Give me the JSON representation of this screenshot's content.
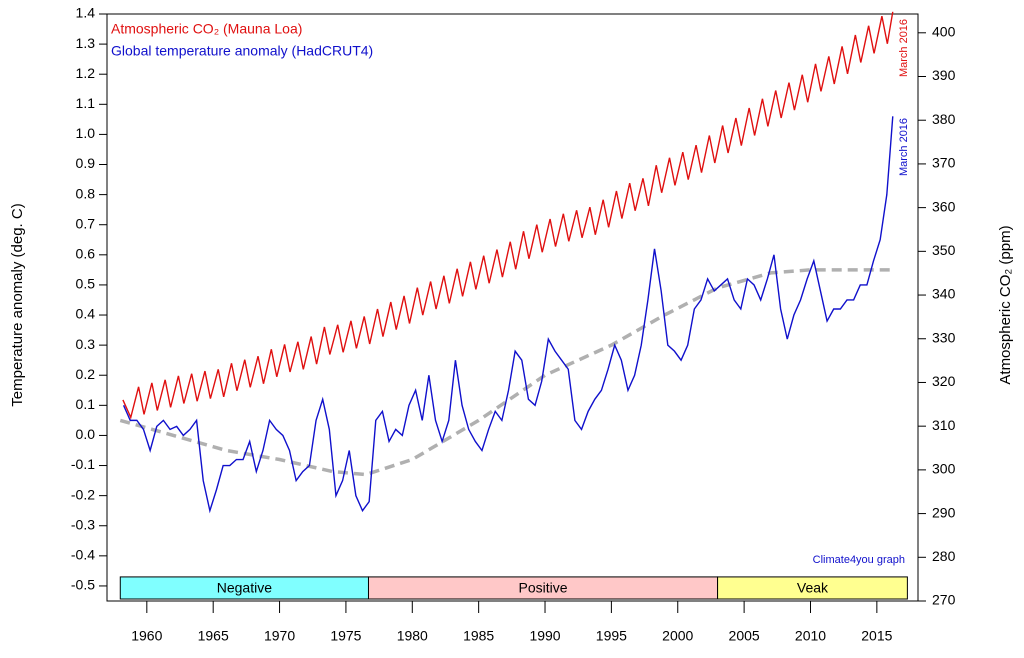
{
  "chart_data": {
    "type": "line",
    "xlim": [
      1957,
      2018.1
    ],
    "xticks": [
      1960,
      1965,
      1970,
      1975,
      1980,
      1985,
      1990,
      1995,
      2000,
      2005,
      2010,
      2015
    ],
    "ylim": [
      -0.55,
      1.4
    ],
    "yticks": [
      -0.5,
      -0.4,
      -0.3,
      -0.2,
      -0.1,
      {
        "value": 0,
        "label": "0.0"
      },
      0.1,
      0.2,
      0.3,
      0.4,
      0.5,
      0.6,
      0.7,
      0.8,
      0.9,
      {
        "value": 1,
        "label": "1.0"
      },
      1.1,
      1.2,
      1.3,
      1.4
    ],
    "ylabel": "Temperature anomaly (deg. C)",
    "y2lim": [
      270,
      404.3
    ],
    "y2ticks": [
      270,
      280,
      290,
      300,
      310,
      320,
      330,
      340,
      350,
      360,
      370,
      380,
      390,
      400
    ],
    "y2label": "Atmospheric CO₂ (ppm)",
    "series": [
      {
        "name": "Atmospheric CO₂ (Mauna Loa)",
        "color": "#e01010",
        "axis": "y2",
        "x": [
          1958.2,
          1958.79,
          1959.38,
          1959.79,
          1960.38,
          1960.79,
          1961.38,
          1961.79,
          1962.38,
          1962.79,
          1963.38,
          1963.79,
          1964.38,
          1964.79,
          1965.38,
          1965.79,
          1966.38,
          1966.79,
          1967.38,
          1967.79,
          1968.38,
          1968.79,
          1969.38,
          1969.79,
          1970.38,
          1970.79,
          1971.38,
          1971.79,
          1972.38,
          1972.79,
          1973.38,
          1973.79,
          1974.38,
          1974.79,
          1975.38,
          1975.79,
          1976.38,
          1976.79,
          1977.38,
          1977.79,
          1978.38,
          1978.79,
          1979.38,
          1979.79,
          1980.38,
          1980.79,
          1981.38,
          1981.79,
          1982.38,
          1982.79,
          1983.38,
          1983.79,
          1984.38,
          1984.79,
          1985.38,
          1985.79,
          1986.38,
          1986.79,
          1987.38,
          1987.79,
          1988.38,
          1988.79,
          1989.38,
          1989.79,
          1990.38,
          1990.79,
          1991.38,
          1991.79,
          1992.38,
          1992.79,
          1993.38,
          1993.79,
          1994.38,
          1994.79,
          1995.38,
          1995.79,
          1996.38,
          1996.79,
          1997.38,
          1997.79,
          1998.38,
          1998.79,
          1999.38,
          1999.79,
          2000.38,
          2000.79,
          2001.38,
          2001.79,
          2002.38,
          2002.79,
          2003.38,
          2003.79,
          2004.38,
          2004.79,
          2005.38,
          2005.79,
          2006.38,
          2006.79,
          2007.38,
          2007.79,
          2008.38,
          2008.79,
          2009.38,
          2009.79,
          2010.38,
          2010.79,
          2011.38,
          2011.79,
          2012.38,
          2012.79,
          2013.38,
          2013.79,
          2014.38,
          2014.79,
          2015.38,
          2015.79,
          2016.2
        ],
        "values": [
          316.0,
          312.0,
          319.0,
          312.7,
          319.9,
          313.6,
          320.6,
          314.3,
          321.5,
          315.2,
          322.0,
          315.7,
          322.6,
          316.3,
          323.0,
          316.7,
          324.4,
          318.1,
          325.2,
          318.9,
          326.0,
          319.7,
          327.6,
          321.3,
          328.7,
          322.4,
          329.3,
          323.0,
          330.5,
          324.2,
          332.7,
          326.4,
          333.2,
          326.9,
          334.1,
          327.8,
          335.1,
          328.8,
          336.8,
          330.5,
          338.4,
          332.1,
          339.8,
          333.5,
          341.7,
          335.4,
          343.1,
          336.8,
          344.4,
          338.1,
          346.0,
          339.7,
          347.6,
          341.3,
          349.0,
          342.7,
          350.4,
          344.1,
          352.2,
          345.9,
          354.6,
          348.3,
          356.1,
          349.8,
          357.4,
          351.1,
          358.6,
          352.3,
          359.4,
          353.1,
          360.1,
          353.8,
          361.8,
          355.5,
          363.8,
          357.5,
          365.6,
          359.3,
          366.7,
          360.4,
          369.7,
          363.4,
          371.4,
          365.1,
          372.7,
          366.4,
          374.3,
          368.0,
          376.5,
          370.2,
          378.8,
          372.5,
          380.5,
          374.2,
          382.8,
          376.5,
          384.9,
          378.6,
          386.8,
          380.5,
          388.6,
          382.3,
          390.4,
          384.1,
          392.9,
          386.6,
          394.6,
          388.3,
          396.9,
          390.6,
          399.5,
          393.2,
          401.6,
          395.3,
          403.8,
          397.5,
          404.8
        ]
      },
      {
        "name": "Global temperature anomaly (HadCRUT4)",
        "color": "#1010cc",
        "axis": "y",
        "x": [
          1958.25,
          1958.75,
          1959.25,
          1959.75,
          1960.25,
          1960.75,
          1961.25,
          1961.75,
          1962.25,
          1962.75,
          1963.25,
          1963.75,
          1964.25,
          1964.75,
          1965.25,
          1965.75,
          1966.25,
          1966.75,
          1967.25,
          1967.75,
          1968.25,
          1968.75,
          1969.25,
          1969.75,
          1970.25,
          1970.75,
          1971.25,
          1971.75,
          1972.25,
          1972.75,
          1973.25,
          1973.75,
          1974.25,
          1974.75,
          1975.25,
          1975.75,
          1976.25,
          1976.75,
          1977.25,
          1977.75,
          1978.25,
          1978.75,
          1979.25,
          1979.75,
          1980.25,
          1980.75,
          1981.25,
          1981.75,
          1982.25,
          1982.75,
          1983.25,
          1983.75,
          1984.25,
          1984.75,
          1985.25,
          1985.75,
          1986.25,
          1986.75,
          1987.25,
          1987.75,
          1988.25,
          1988.75,
          1989.25,
          1989.75,
          1990.25,
          1990.75,
          1991.25,
          1991.75,
          1992.25,
          1992.75,
          1993.25,
          1993.75,
          1994.25,
          1994.75,
          1995.25,
          1995.75,
          1996.25,
          1996.75,
          1997.25,
          1997.75,
          1998.25,
          1998.75,
          1999.25,
          1999.75,
          2000.25,
          2000.75,
          2001.25,
          2001.75,
          2002.25,
          2002.75,
          2003.25,
          2003.75,
          2004.25,
          2004.75,
          2005.25,
          2005.75,
          2006.25,
          2006.75,
          2007.25,
          2007.75,
          2008.25,
          2008.75,
          2009.25,
          2009.75,
          2010.25,
          2010.75,
          2011.25,
          2011.75,
          2012.25,
          2012.75,
          2013.25,
          2013.75,
          2014.25,
          2014.75,
          2015.25,
          2015.75,
          2016.2
        ],
        "values": [
          0.1,
          0.05,
          0.05,
          0.02,
          -0.05,
          0.03,
          0.05,
          0.02,
          0.03,
          0.0,
          0.02,
          0.05,
          -0.15,
          -0.25,
          -0.18,
          -0.1,
          -0.1,
          -0.08,
          -0.08,
          -0.02,
          -0.12,
          -0.05,
          0.05,
          0.02,
          0.0,
          -0.05,
          -0.15,
          -0.12,
          -0.1,
          0.05,
          0.12,
          0.02,
          -0.2,
          -0.15,
          -0.05,
          -0.2,
          -0.25,
          -0.22,
          0.05,
          0.08,
          -0.02,
          0.02,
          0.0,
          0.1,
          0.15,
          0.05,
          0.2,
          0.05,
          -0.02,
          0.05,
          0.25,
          0.1,
          0.02,
          -0.02,
          -0.05,
          0.02,
          0.08,
          0.05,
          0.15,
          0.28,
          0.25,
          0.12,
          0.1,
          0.18,
          0.32,
          0.28,
          0.25,
          0.22,
          0.05,
          0.02,
          0.08,
          0.12,
          0.15,
          0.22,
          0.3,
          0.25,
          0.15,
          0.2,
          0.3,
          0.45,
          0.62,
          0.48,
          0.3,
          0.28,
          0.25,
          0.3,
          0.42,
          0.45,
          0.52,
          0.48,
          0.5,
          0.52,
          0.45,
          0.42,
          0.52,
          0.5,
          0.45,
          0.52,
          0.6,
          0.42,
          0.32,
          0.4,
          0.45,
          0.52,
          0.58,
          0.48,
          0.38,
          0.42,
          0.42,
          0.45,
          0.45,
          0.5,
          0.5,
          0.58,
          0.65,
          0.8,
          1.06
        ]
      }
    ],
    "trend": {
      "color": "#b0b0b0",
      "x": [
        1958,
        1962,
        1966,
        1970,
        1974,
        1976.5,
        1980,
        1985,
        1990,
        1995,
        1999,
        2003,
        2007,
        2010,
        2016
      ],
      "values": [
        0.05,
        0.0,
        -0.05,
        -0.08,
        -0.12,
        -0.13,
        -0.08,
        0.05,
        0.2,
        0.3,
        0.4,
        0.49,
        0.54,
        0.55,
        0.55
      ]
    },
    "periods": [
      {
        "label": "Negative",
        "start": 1958,
        "end": 1976.7,
        "color": "#80ffff"
      },
      {
        "label": "Positive",
        "start": 1976.7,
        "end": 2003,
        "color": "#ffc8c8"
      },
      {
        "label": "Veak",
        "start": 2003,
        "end": 2017.3,
        "color": "#ffff90"
      }
    ],
    "annotations": [
      "March 2016",
      "March 2016",
      "Climate4you graph"
    ]
  }
}
